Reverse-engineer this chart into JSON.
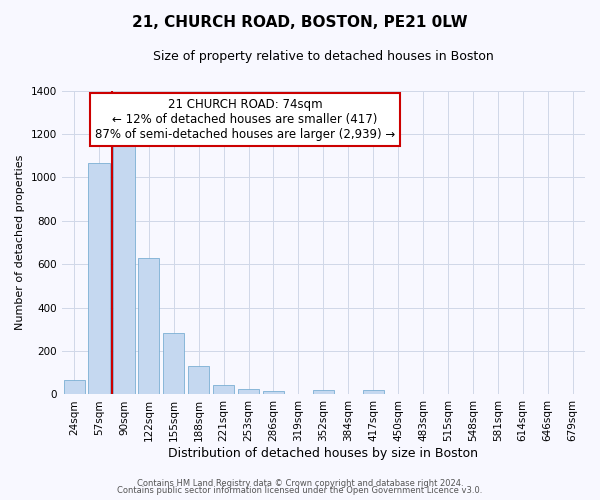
{
  "title": "21, CHURCH ROAD, BOSTON, PE21 0LW",
  "subtitle": "Size of property relative to detached houses in Boston",
  "xlabel": "Distribution of detached houses by size in Boston",
  "ylabel": "Number of detached properties",
  "bar_labels": [
    "24sqm",
    "57sqm",
    "90sqm",
    "122sqm",
    "155sqm",
    "188sqm",
    "221sqm",
    "253sqm",
    "286sqm",
    "319sqm",
    "352sqm",
    "384sqm",
    "417sqm",
    "450sqm",
    "483sqm",
    "515sqm",
    "548sqm",
    "581sqm",
    "614sqm",
    "646sqm",
    "679sqm"
  ],
  "bar_values": [
    65,
    1065,
    1155,
    630,
    285,
    130,
    45,
    25,
    15,
    0,
    20,
    0,
    20,
    0,
    0,
    0,
    0,
    0,
    0,
    0,
    0
  ],
  "bar_color": "#c5d8f0",
  "bar_edge_color": "#7bafd4",
  "annotation_title": "21 CHURCH ROAD: 74sqm",
  "annotation_line1": "← 12% of detached houses are smaller (417)",
  "annotation_line2": "87% of semi-detached houses are larger (2,939) →",
  "annotation_box_color": "#ffffff",
  "annotation_box_edgecolor": "#cc0000",
  "redline_color": "#cc0000",
  "ylim": [
    0,
    1400
  ],
  "yticks": [
    0,
    200,
    400,
    600,
    800,
    1000,
    1200,
    1400
  ],
  "footnote1": "Contains HM Land Registry data © Crown copyright and database right 2024.",
  "footnote2": "Contains public sector information licensed under the Open Government Licence v3.0.",
  "grid_color": "#d0d8e8",
  "bg_color": "#f8f8ff",
  "title_fontsize": 11,
  "subtitle_fontsize": 9,
  "ylabel_fontsize": 8,
  "xlabel_fontsize": 9,
  "tick_fontsize": 7.5,
  "annotation_fontsize": 8.5,
  "footnote_fontsize": 6
}
